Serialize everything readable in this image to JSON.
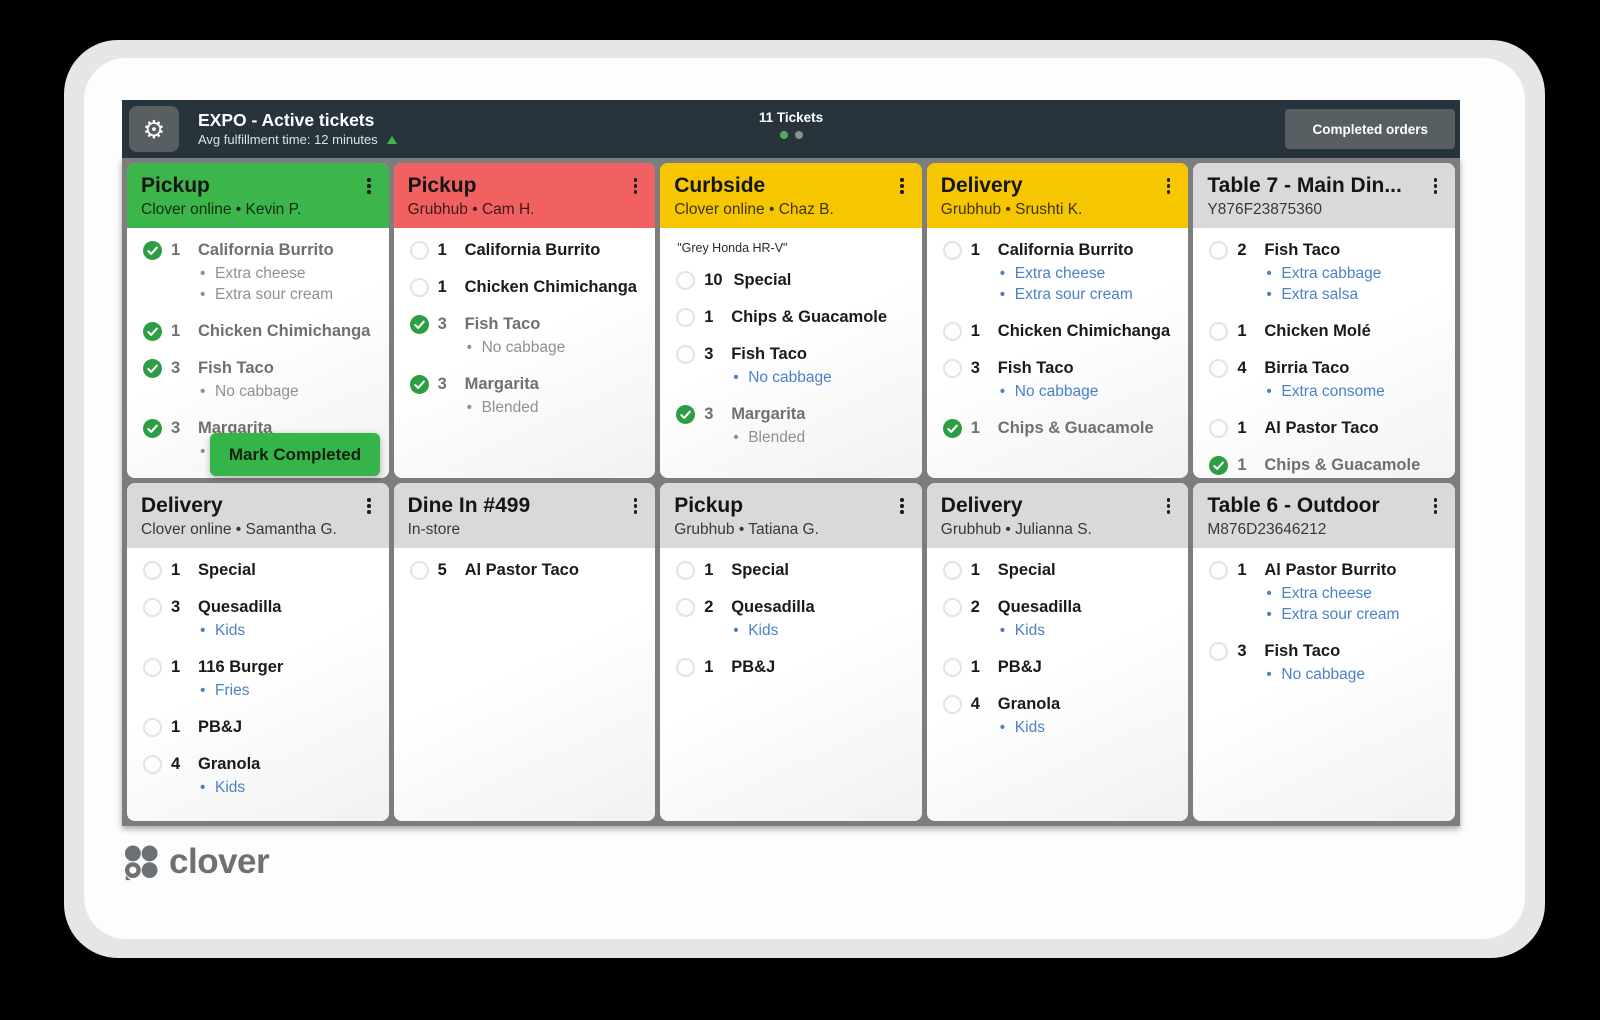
{
  "colors": {
    "topbar_bg": "#28343B",
    "board_bg": "#7D7D7D",
    "green_header": "#3CB54A",
    "red_header": "#F16161",
    "yellow_header": "#F6C700",
    "gray_header": "#D9D9D9",
    "check_green": "#2E9E44",
    "modifier_blue": "#4A82C6",
    "button_gray": "#575F63",
    "mark_completed_green": "#35B44A",
    "indicator_green": "#4CAF50",
    "indicator_gray": "#8E8E8E",
    "logo_gray": "#6E7174"
  },
  "topbar": {
    "title": "EXPO - Active tickets",
    "subtitle": "Avg fulfillment time: 12 minutes",
    "tickets_count": "11 Tickets",
    "completed_orders_label": "Completed orders"
  },
  "overlay": {
    "mark_completed_label": "Mark Completed"
  },
  "logo": {
    "wordmark": "clover"
  },
  "board": {
    "tickets": [
      {
        "title": "Pickup",
        "subtitle": "Clover online •  Kevin P.",
        "variant": "green",
        "items": [
          {
            "qty": "1",
            "name": "California Burrito",
            "checked": true,
            "modifiers": [
              "Extra cheese",
              "Extra sour cream"
            ]
          },
          {
            "qty": "1",
            "name": "Chicken Chimichanga",
            "checked": true,
            "modifiers": []
          },
          {
            "qty": "3",
            "name": "Fish Taco",
            "checked": true,
            "modifiers": [
              "No cabbage"
            ]
          },
          {
            "qty": "3",
            "name": "Margarita",
            "checked": true,
            "modifiers": [
              "Blended"
            ]
          }
        ]
      },
      {
        "title": "Pickup",
        "subtitle": "Grubhub •  Cam H.",
        "variant": "red",
        "items": [
          {
            "qty": "1",
            "name": "California Burrito",
            "checked": false,
            "modifiers": []
          },
          {
            "qty": "1",
            "name": "Chicken Chimichanga",
            "checked": false,
            "modifiers": []
          },
          {
            "qty": "3",
            "name": "Fish Taco",
            "checked": true,
            "modifiers": [
              "No cabbage"
            ]
          },
          {
            "qty": "3",
            "name": "Margarita",
            "checked": true,
            "modifiers": [
              "Blended"
            ]
          }
        ]
      },
      {
        "title": "Curbside",
        "subtitle": "Clover online •  Chaz B.",
        "variant": "yellow",
        "note": "\"Grey Honda HR-V\"",
        "items": [
          {
            "qty": "10",
            "name": "Special",
            "checked": false,
            "modifiers": []
          },
          {
            "qty": "1",
            "name": "Chips & Guacamole",
            "checked": false,
            "modifiers": []
          },
          {
            "qty": "3",
            "name": "Fish Taco",
            "checked": false,
            "modifiers": [
              "No cabbage"
            ]
          },
          {
            "qty": "3",
            "name": "Margarita",
            "checked": true,
            "modifiers": [
              "Blended"
            ]
          }
        ]
      },
      {
        "title": "Delivery",
        "subtitle": "Grubhub •  Srushti K.",
        "variant": "yellow",
        "items": [
          {
            "qty": "1",
            "name": "California Burrito",
            "checked": false,
            "modifiers": [
              "Extra cheese",
              "Extra sour cream"
            ]
          },
          {
            "qty": "1",
            "name": "Chicken Chimichanga",
            "checked": false,
            "modifiers": []
          },
          {
            "qty": "3",
            "name": "Fish Taco",
            "checked": false,
            "modifiers": [
              "No cabbage"
            ]
          },
          {
            "qty": "1",
            "name": "Chips & Guacamole",
            "checked": true,
            "modifiers": []
          }
        ]
      },
      {
        "title": "Table 7 - Main Din...",
        "subtitle": "Y876F23875360",
        "variant": "gray",
        "items": [
          {
            "qty": "2",
            "name": "Fish Taco",
            "checked": false,
            "modifiers": [
              "Extra cabbage",
              "Extra salsa"
            ]
          },
          {
            "qty": "1",
            "name": "Chicken Molé",
            "checked": false,
            "modifiers": []
          },
          {
            "qty": "4",
            "name": "Birria Taco",
            "checked": false,
            "modifiers": [
              "Extra consome"
            ]
          },
          {
            "qty": "1",
            "name": "Al Pastor Taco",
            "checked": false,
            "modifiers": []
          },
          {
            "qty": "1",
            "name": "Chips & Guacamole",
            "checked": true,
            "modifiers": []
          }
        ]
      },
      {
        "title": "Delivery",
        "subtitle": "Clover online •  Samantha G.",
        "variant": "gray",
        "items": [
          {
            "qty": "1",
            "name": "Special",
            "checked": false,
            "modifiers": []
          },
          {
            "qty": "3",
            "name": "Quesadilla",
            "checked": false,
            "modifiers": [
              "Kids"
            ]
          },
          {
            "qty": "1",
            "name": "116 Burger",
            "checked": false,
            "modifiers": [
              "Fries"
            ]
          },
          {
            "qty": "1",
            "name": "PB&J",
            "checked": false,
            "modifiers": []
          },
          {
            "qty": "4",
            "name": "Granola",
            "checked": false,
            "modifiers": [
              "Kids"
            ]
          }
        ]
      },
      {
        "title": "Dine In #499",
        "subtitle": "In-store",
        "variant": "gray",
        "items": [
          {
            "qty": "5",
            "name": "Al Pastor Taco",
            "checked": false,
            "modifiers": []
          }
        ]
      },
      {
        "title": "Pickup",
        "subtitle": "Grubhub •  Tatiana G.",
        "variant": "gray",
        "items": [
          {
            "qty": "1",
            "name": "Special",
            "checked": false,
            "modifiers": []
          },
          {
            "qty": "2",
            "name": "Quesadilla",
            "checked": false,
            "modifiers": [
              "Kids"
            ]
          },
          {
            "qty": "1",
            "name": "PB&J",
            "checked": false,
            "modifiers": []
          }
        ]
      },
      {
        "title": "Delivery",
        "subtitle": "Grubhub •  Julianna S.",
        "variant": "gray",
        "items": [
          {
            "qty": "1",
            "name": "Special",
            "checked": false,
            "modifiers": []
          },
          {
            "qty": "2",
            "name": "Quesadilla",
            "checked": false,
            "modifiers": [
              "Kids"
            ]
          },
          {
            "qty": "1",
            "name": "PB&J",
            "checked": false,
            "modifiers": []
          },
          {
            "qty": "4",
            "name": "Granola",
            "checked": false,
            "modifiers": [
              "Kids"
            ]
          }
        ]
      },
      {
        "title": "Table 6 - Outdoor",
        "subtitle": "M876D23646212",
        "variant": "gray",
        "items": [
          {
            "qty": "1",
            "name": "Al Pastor Burrito",
            "checked": false,
            "modifiers": [
              "Extra cheese",
              "Extra sour cream"
            ]
          },
          {
            "qty": "3",
            "name": "Fish Taco",
            "checked": false,
            "modifiers": [
              "No cabbage"
            ]
          }
        ]
      }
    ]
  }
}
